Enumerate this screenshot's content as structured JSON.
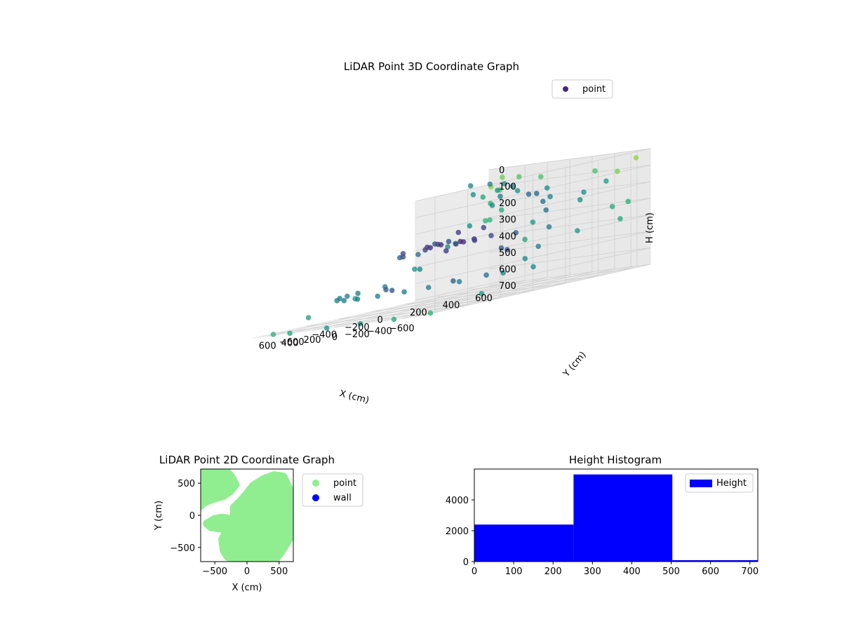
{
  "chart_data": [
    {
      "type": "scatter",
      "title": "LiDAR Point 3D Coordinate Graph",
      "xlabel": "X (cm)",
      "ylabel": "Y (cm)",
      "zlabel": "H (cm)",
      "xlim": [
        -720,
        720
      ],
      "ylim": [
        -720,
        720
      ],
      "zlim": [
        0,
        700
      ],
      "z_inverted": true,
      "x_ticks": [
        -600,
        -400,
        -200,
        0,
        200,
        400,
        600
      ],
      "y_ticks": [
        -600,
        -400,
        -200,
        0,
        200,
        400,
        600
      ],
      "z_ticks": [
        0,
        100,
        200,
        300,
        400,
        500,
        600,
        700
      ],
      "grid": true,
      "legend": {
        "placement": "top-right",
        "entries": [
          "point"
        ]
      },
      "colormap": "viridis",
      "series": [
        {
          "name": "point",
          "points": [
            [
              -100,
              0,
              350
            ],
            [
              0,
              50,
              350
            ],
            [
              100,
              0,
              350
            ],
            [
              50,
              -100,
              350
            ],
            [
              -50,
              100,
              350
            ],
            [
              200,
              50,
              350
            ],
            [
              -200,
              0,
              350
            ],
            [
              150,
              -50,
              350
            ],
            [
              -150,
              -80,
              350
            ],
            [
              300,
              100,
              350
            ],
            [
              -50,
              -200,
              350
            ],
            [
              250,
              150,
              350
            ],
            [
              -500,
              -300,
              560
            ],
            [
              -400,
              -420,
              560
            ],
            [
              -300,
              -500,
              560
            ],
            [
              -150,
              -560,
              560
            ],
            [
              0,
              -580,
              560
            ],
            [
              150,
              -560,
              560
            ],
            [
              300,
              -500,
              560
            ],
            [
              450,
              -380,
              560
            ],
            [
              550,
              -200,
              560
            ],
            [
              600,
              0,
              560
            ],
            [
              580,
              200,
              500
            ],
            [
              550,
              350,
              400
            ],
            [
              500,
              450,
              300
            ],
            [
              400,
              520,
              200
            ],
            [
              300,
              500,
              150
            ],
            [
              -600,
              -100,
              560
            ],
            [
              -650,
              50,
              560
            ],
            [
              -550,
              150,
              450
            ],
            [
              -500,
              250,
              350
            ],
            [
              -400,
              300,
              250
            ],
            [
              -300,
              350,
              200
            ],
            [
              -200,
              380,
              150
            ],
            [
              -100,
              400,
              150
            ],
            [
              0,
              400,
              120
            ],
            [
              150,
              380,
              100
            ],
            [
              250,
              300,
              100
            ],
            [
              -100,
              300,
              80
            ],
            [
              0,
              320,
              60
            ],
            [
              100,
              300,
              50
            ],
            [
              200,
              250,
              40
            ],
            [
              -600,
              600,
              100
            ],
            [
              -500,
              600,
              150
            ],
            [
              -400,
              600,
              80
            ],
            [
              -300,
              600,
              200
            ],
            [
              -700,
              500,
              300
            ],
            [
              -680,
              300,
              400
            ],
            [
              -650,
              0,
              500
            ],
            [
              -700,
              -300,
              650
            ],
            [
              -680,
              -600,
              700
            ],
            [
              -500,
              -700,
              700
            ],
            [
              -200,
              -700,
              700
            ],
            [
              100,
              -700,
              700
            ],
            [
              400,
              -720,
              700
            ],
            [
              650,
              -650,
              700
            ],
            [
              700,
              -400,
              650
            ],
            [
              720,
              -100,
              600
            ],
            [
              700,
              250,
              500
            ],
            [
              700,
              500,
              400
            ],
            [
              650,
              650,
              300
            ],
            [
              600,
              650,
              100
            ],
            [
              620,
              660,
              200
            ],
            [
              640,
              670,
              300
            ],
            [
              600,
              600,
              150
            ],
            [
              550,
              680,
              250
            ],
            [
              500,
              650,
              50
            ],
            [
              450,
              600,
              120
            ],
            [
              350,
              650,
              60
            ],
            [
              200,
              680,
              80
            ],
            [
              100,
              650,
              150
            ],
            [
              0,
              600,
              200
            ],
            [
              -150,
              680,
              250
            ],
            [
              300,
              700,
              350
            ],
            [
              400,
              720,
              450
            ],
            [
              -650,
              680,
              40
            ],
            [
              -550,
              700,
              300
            ],
            [
              -450,
              720,
              400
            ],
            [
              100,
              -300,
              560
            ],
            [
              -300,
              -200,
              560
            ],
            [
              300,
              -200,
              560
            ],
            [
              -200,
              200,
              450
            ],
            [
              450,
              100,
              400
            ],
            [
              -450,
              -100,
              560
            ],
            [
              500,
              -300,
              560
            ],
            [
              -350,
              150,
              350
            ],
            [
              120,
              120,
              300
            ],
            [
              -120,
              -120,
              380
            ],
            [
              220,
              -150,
              360
            ],
            [
              -260,
              60,
              340
            ],
            [
              60,
              -260,
              370
            ],
            [
              380,
              -60,
              390
            ],
            [
              -380,
              40,
              420
            ],
            [
              40,
              220,
              300
            ]
          ]
        }
      ]
    },
    {
      "type": "scatter",
      "title": "LiDAR Point 2D Coordinate Graph",
      "xlabel": "X (cm)",
      "ylabel": "Y (cm)",
      "xlim": [
        -720,
        720
      ],
      "ylim": [
        -720,
        720
      ],
      "x_ticks": [
        -500,
        0,
        500
      ],
      "y_ticks": [
        -500,
        0,
        500
      ],
      "legend": {
        "placement": "outside-right",
        "entries": [
          "point",
          "wall"
        ]
      },
      "colors": {
        "point": "#90ee90",
        "wall": "#0000ff"
      },
      "series": [
        {
          "name": "point",
          "regions": [
            {
              "x": [
                -720,
                -650,
                -540,
                -420,
                -320,
                -250,
                -180,
                -260,
                -380,
                -500,
                -600,
                -700,
                -720
              ],
              "y": [
                720,
                720,
                700,
                690,
                680,
                600,
                480,
                380,
                300,
                270,
                230,
                190,
                150
              ]
            },
            {
              "x": [
                -200,
                -60,
                100,
                260,
                420,
                560,
                640,
                700,
                720,
                720,
                680,
                560,
                460,
                400,
                300,
                180,
                60,
                -60,
                -180,
                -300,
                -360,
                -380,
                -300,
                -200
              ],
              "y": [
                120,
                260,
                460,
                560,
                620,
                600,
                440,
                320,
                200,
                -40,
                -320,
                -520,
                -660,
                -720,
                -720,
                -720,
                -720,
                -720,
                -700,
                -640,
                -540,
                -380,
                -200,
                0
              ]
            },
            {
              "x": [
                -620,
                -500,
                -380,
                -260,
                -300,
                -420,
                -560
              ],
              "y": [
                -130,
                -60,
                -40,
                -60,
                -160,
                -200,
                -180
              ]
            }
          ]
        },
        {
          "name": "wall",
          "points": []
        }
      ]
    },
    {
      "type": "bar",
      "title": "Height Histogram",
      "xlim": [
        0,
        720
      ],
      "ylim": [
        0,
        6000
      ],
      "x_ticks": [
        0,
        100,
        200,
        300,
        400,
        500,
        600,
        700
      ],
      "y_ticks": [
        0,
        2000,
        4000
      ],
      "legend": {
        "placement": "top-right",
        "entries": [
          "Height"
        ]
      },
      "colors": {
        "Height": "#0000ff"
      },
      "series": [
        {
          "name": "Height",
          "bins": [
            {
              "x0": 0,
              "x1": 252,
              "value": 2400
            },
            {
              "x0": 252,
              "x1": 503,
              "value": 5650
            },
            {
              "x0": 503,
              "x1": 720,
              "value": 90
            }
          ]
        }
      ]
    }
  ]
}
